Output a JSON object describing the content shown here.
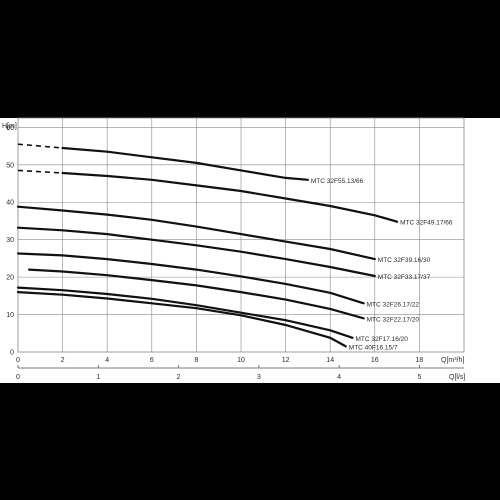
{
  "chart_data": {
    "type": "line",
    "y_axis": {
      "label": "H[m]",
      "min": 0,
      "max": 60,
      "ticks": [
        0,
        10,
        20,
        30,
        40,
        50,
        60
      ]
    },
    "x_axis": {
      "label": "Q[m³/h]",
      "min": 0,
      "max": 20,
      "ticks": [
        0,
        2,
        4,
        6,
        8,
        10,
        12,
        14,
        16,
        18
      ]
    },
    "x2_axis": {
      "label": "Q[l/s]",
      "min": 0,
      "max": 5.5556,
      "ticks": [
        0,
        1,
        2,
        3,
        4,
        5
      ]
    },
    "grid": true,
    "series": [
      {
        "name": "MTC 32F55.13/66",
        "dashed": [
          [
            0,
            55.5
          ],
          [
            2,
            54.5
          ]
        ],
        "values": [
          [
            2,
            54.5
          ],
          [
            4,
            53.5
          ],
          [
            6,
            52
          ],
          [
            8,
            50.5
          ],
          [
            10,
            48.5
          ],
          [
            12,
            46.5
          ],
          [
            13,
            46
          ]
        ]
      },
      {
        "name": "MTC 32F49.17/66",
        "dashed": [
          [
            0,
            48.5
          ],
          [
            2,
            47.8
          ]
        ],
        "values": [
          [
            2,
            47.8
          ],
          [
            4,
            47
          ],
          [
            6,
            46
          ],
          [
            8,
            44.5
          ],
          [
            10,
            43
          ],
          [
            12,
            41
          ],
          [
            14,
            39
          ],
          [
            16,
            36.5
          ],
          [
            17,
            34.8
          ]
        ]
      },
      {
        "name": "MTC 32F39.16/30",
        "values": [
          [
            0,
            38.8
          ],
          [
            2,
            37.8
          ],
          [
            4,
            36.7
          ],
          [
            6,
            35.3
          ],
          [
            8,
            33.5
          ],
          [
            10,
            31.5
          ],
          [
            12,
            29.5
          ],
          [
            14,
            27.5
          ],
          [
            16,
            24.8
          ]
        ]
      },
      {
        "name": "MTC 32F33.17/37",
        "values": [
          [
            0,
            33.2
          ],
          [
            2,
            32.5
          ],
          [
            4,
            31.5
          ],
          [
            6,
            30
          ],
          [
            8,
            28.5
          ],
          [
            10,
            26.8
          ],
          [
            12,
            24.8
          ],
          [
            14,
            22.7
          ],
          [
            16,
            20.3
          ]
        ]
      },
      {
        "name": "MTC 32F26.17/22",
        "values": [
          [
            0,
            26.3
          ],
          [
            2,
            25.8
          ],
          [
            4,
            24.8
          ],
          [
            6,
            23.5
          ],
          [
            8,
            22
          ],
          [
            10,
            20.2
          ],
          [
            12,
            18.2
          ],
          [
            14,
            15.8
          ],
          [
            15.5,
            13
          ]
        ]
      },
      {
        "name": "MTC 32F22.17/20",
        "values": [
          [
            0.5,
            22
          ],
          [
            2,
            21.5
          ],
          [
            4,
            20.5
          ],
          [
            6,
            19.2
          ],
          [
            8,
            17.8
          ],
          [
            10,
            16
          ],
          [
            12,
            14
          ],
          [
            14,
            11.5
          ],
          [
            15.5,
            9
          ]
        ]
      },
      {
        "name": "MTC 32F17.16/20",
        "values": [
          [
            0,
            17.2
          ],
          [
            2,
            16.5
          ],
          [
            4,
            15.5
          ],
          [
            6,
            14.2
          ],
          [
            8,
            12.5
          ],
          [
            10,
            10.5
          ],
          [
            12,
            8.5
          ],
          [
            14,
            5.8
          ],
          [
            15,
            3.8
          ]
        ]
      },
      {
        "name": "MTC 40F16.15/7",
        "values": [
          [
            0,
            16
          ],
          [
            2,
            15.3
          ],
          [
            4,
            14.3
          ],
          [
            6,
            13
          ],
          [
            8,
            11.7
          ],
          [
            10,
            9.8
          ],
          [
            12,
            7.2
          ],
          [
            14,
            3.8
          ],
          [
            14.7,
            1.5
          ]
        ]
      }
    ]
  }
}
